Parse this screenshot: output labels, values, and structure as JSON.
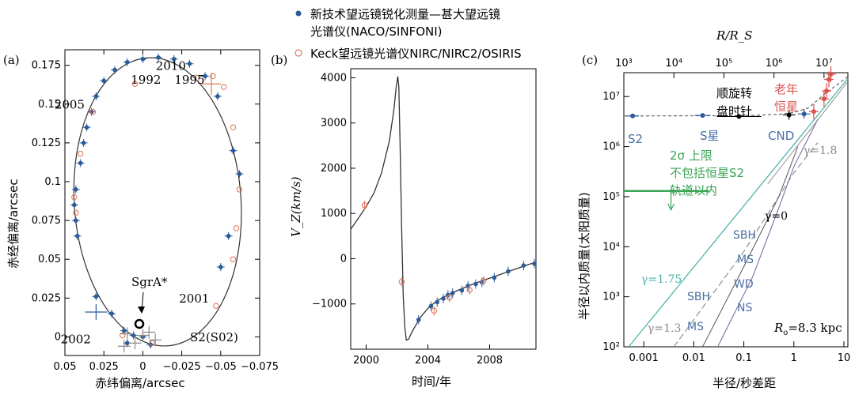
{
  "legend": {
    "items": [
      {
        "marker": "filled-circle",
        "color": "#2b5c99",
        "label_line1": "新技术望远镜锐化测量—甚大望远镜",
        "label_line2": "光谱仪(NACO/SINFONI)"
      },
      {
        "marker": "open-circle",
        "color": "#e07a5f",
        "label_line1": "Keck望远镜光谱仪NIRC/NIRC2/OSIRIS",
        "label_line2": ""
      }
    ]
  },
  "colors": {
    "vlt": "#2b5c99",
    "keck": "#e07a5f",
    "gray": "#8a8a8a",
    "green": "#3aa655",
    "teal": "#4fb3a8",
    "red": "#d9534f",
    "purple": "#7b6fa6",
    "label_blue": "#4a6fa5"
  },
  "chart_data": [
    {
      "panel": "(a)",
      "type": "scatter",
      "xlabel": "赤纬偏离/arcsec",
      "ylabel": "赤经偏离/arcsec",
      "xlim": [
        0.05,
        -0.075
      ],
      "ylim": [
        -0.012,
        0.185
      ],
      "xticks": [
        "0.05",
        "0.025",
        "0",
        "−0.025",
        "−0.05",
        "−0.075"
      ],
      "xtick_values": [
        0.05,
        0.025,
        0,
        -0.025,
        -0.05,
        -0.075
      ],
      "yticks": [
        "0",
        "0.025",
        "0.05",
        "0.075",
        "0.1",
        "0.125",
        "0.15",
        "0.175"
      ],
      "ytick_values": [
        0,
        0.025,
        0.05,
        0.075,
        0.1,
        0.125,
        0.15,
        0.175
      ],
      "orbit_label": "S2(S02)",
      "center_label": "SgrA*",
      "annotations": [
        {
          "text": "2010",
          "x": -0.018,
          "y": 0.172
        },
        {
          "text": "1992",
          "x": -0.002,
          "y": 0.163
        },
        {
          "text": "1995",
          "x": -0.03,
          "y": 0.163
        },
        {
          "text": "2005",
          "x": 0.047,
          "y": 0.147
        },
        {
          "text": "2001",
          "x": -0.033,
          "y": 0.022
        },
        {
          "text": "2002",
          "x": 0.043,
          "y": -0.004
        }
      ],
      "series": [
        {
          "name": "VLT",
          "points": [
            [
              0.043,
              0.095
            ],
            [
              0.044,
              0.085
            ],
            [
              0.043,
              0.075
            ],
            [
              0.042,
              0.065
            ],
            [
              0.04,
              0.112
            ],
            [
              0.038,
              0.125
            ],
            [
              0.036,
              0.135
            ],
            [
              0.033,
              0.145
            ],
            [
              0.03,
              0.155
            ],
            [
              0.025,
              0.165
            ],
            [
              0.018,
              0.172
            ],
            [
              0.01,
              0.177
            ],
            [
              0.0,
              0.179
            ],
            [
              -0.01,
              0.18
            ],
            [
              -0.02,
              0.179
            ],
            [
              -0.03,
              0.176
            ],
            [
              -0.04,
              0.168
            ],
            [
              -0.048,
              0.155
            ],
            [
              -0.058,
              0.12
            ],
            [
              -0.062,
              0.105
            ],
            [
              -0.055,
              0.065
            ],
            [
              -0.05,
              0.045
            ],
            [
              0.03,
              0.026
            ],
            [
              0.02,
              0.015
            ],
            [
              0.012,
              0.004
            ],
            [
              0.006,
              0.001
            ],
            [
              0.0,
              0.0
            ],
            [
              -0.005,
              -0.005
            ],
            [
              0.01,
              -0.004
            ]
          ]
        },
        {
          "name": "Keck",
          "points": [
            [
              0.044,
              0.09
            ],
            [
              0.043,
              0.08
            ],
            [
              0.04,
              0.118
            ],
            [
              0.032,
              0.145
            ],
            [
              0.005,
              0.163
            ],
            [
              -0.035,
              0.167
            ],
            [
              -0.045,
              0.168
            ],
            [
              -0.052,
              0.161
            ],
            [
              -0.058,
              0.135
            ],
            [
              -0.062,
              0.095
            ],
            [
              -0.06,
              0.07
            ],
            [
              -0.058,
              0.05
            ],
            [
              -0.047,
              0.02
            ],
            [
              0.013,
              0.001
            ],
            [
              -0.006,
              -0.004
            ]
          ]
        }
      ]
    },
    {
      "panel": "(b)",
      "type": "line",
      "xlabel": "时间/年",
      "ylabel": "V_Z(km/s)",
      "xlim": [
        1999,
        2011
      ],
      "ylim": [
        -2000,
        4200
      ],
      "xticks": [
        "2000",
        "2004",
        "2008"
      ],
      "xtick_values": [
        2000,
        2004,
        2008
      ],
      "yticks": [
        "−1000",
        "0",
        "1000",
        "2000",
        "3000",
        "4000"
      ],
      "ytick_values": [
        -1000,
        0,
        1000,
        2000,
        3000,
        4000
      ],
      "curve": [
        [
          1999.0,
          650
        ],
        [
          1999.5,
          900
        ],
        [
          2000.0,
          1150
        ],
        [
          2000.5,
          1450
        ],
        [
          2001.0,
          1900
        ],
        [
          2001.5,
          2600
        ],
        [
          2001.8,
          3300
        ],
        [
          2001.95,
          3800
        ],
        [
          2002.05,
          4030
        ],
        [
          2002.12,
          3800
        ],
        [
          2002.2,
          2500
        ],
        [
          2002.3,
          700
        ],
        [
          2002.4,
          -800
        ],
        [
          2002.5,
          -1500
        ],
        [
          2002.6,
          -1800
        ],
        [
          2002.75,
          -1780
        ],
        [
          2003.0,
          -1600
        ],
        [
          2003.5,
          -1300
        ],
        [
          2004.0,
          -1100
        ],
        [
          2004.5,
          -950
        ],
        [
          2005.0,
          -850
        ],
        [
          2005.5,
          -770
        ],
        [
          2006.0,
          -690
        ],
        [
          2006.5,
          -620
        ],
        [
          2007.0,
          -550
        ],
        [
          2007.5,
          -490
        ],
        [
          2008.0,
          -430
        ],
        [
          2008.5,
          -370
        ],
        [
          2009.0,
          -310
        ],
        [
          2009.5,
          -250
        ],
        [
          2010.0,
          -190
        ],
        [
          2010.5,
          -130
        ],
        [
          2011.0,
          -80
        ]
      ],
      "series": [
        {
          "name": "VLT",
          "points": [
            [
              2003.4,
              -1350
            ],
            [
              2004.2,
              -1050
            ],
            [
              2004.6,
              -960
            ],
            [
              2005.0,
              -880
            ],
            [
              2005.3,
              -800
            ],
            [
              2005.6,
              -760
            ],
            [
              2006.2,
              -700
            ],
            [
              2006.6,
              -600
            ],
            [
              2007.1,
              -560
            ],
            [
              2007.5,
              -520
            ],
            [
              2008.3,
              -420
            ],
            [
              2009.2,
              -280
            ],
            [
              2010.2,
              -150
            ],
            [
              2010.9,
              -110
            ]
          ]
        },
        {
          "name": "Keck",
          "points": [
            [
              1999.9,
              1180
            ],
            [
              2002.3,
              -510
            ],
            [
              2004.4,
              -1150
            ],
            [
              2005.4,
              -860
            ],
            [
              2006.7,
              -690
            ],
            [
              2007.6,
              -490
            ]
          ]
        }
      ]
    },
    {
      "panel": "(c)",
      "type": "line",
      "x_scale": "log",
      "y_scale": "log",
      "xlabel": "半径/秒差距",
      "ylabel": "半径以内质量(太阳质量)",
      "top_xlabel": "R/R_S",
      "xlim": [
        0.0004,
        12
      ],
      "ylim": [
        100,
        30000000
      ],
      "xticks": [
        "0.001",
        "0.01",
        "0.1",
        "1",
        "10"
      ],
      "xtick_values": [
        0.001,
        0.01,
        0.1,
        1,
        10
      ],
      "top_xticks": [
        "10³",
        "10⁴",
        "10⁵",
        "10⁶",
        "10⁷"
      ],
      "top_xtick_values": [
        0.0004,
        0.004,
        0.04,
        0.4,
        4
      ],
      "yticks": [
        "10²",
        "10³",
        "10⁴",
        "10⁵",
        "10⁶",
        "10⁷"
      ],
      "ytick_values": [
        100,
        1000,
        10000,
        100000,
        1000000,
        10000000
      ],
      "annotations": {
        "rotation_label_line1": "顺旋转",
        "rotation_label_line2": "盘时针",
        "old_stars_line1": "老年",
        "old_stars_line2": "恒星",
        "s2": "S2",
        "s_stars": "S星",
        "cnd": "CND",
        "limit_line1": "2σ 上限",
        "limit_line2": "不包括恒星S2",
        "limit_line3": "轨道以内",
        "gamma_18": "γ=1.8",
        "gamma_0": "γ=0",
        "gamma_175": "γ=1.75",
        "gamma_13": "γ=1.3",
        "sbh1": "SBH",
        "ms1": "MS",
        "wd": "WD",
        "ns": "NS",
        "sbh2": "SBH",
        "ms2": "MS",
        "ro": "R",
        "ro_sub": "o",
        "ro_value": "=8.3 kpc"
      },
      "series": [
        {
          "name": "S2",
          "points": [
            [
              0.0006,
              4100000
            ]
          ]
        },
        {
          "name": "S-stars",
          "points": [
            [
              0.015,
              4200000
            ]
          ]
        },
        {
          "name": "clockwise disk",
          "points": [
            [
              0.08,
              4000000
            ]
          ]
        },
        {
          "name": "CND",
          "points": [
            [
              0.8,
              4300000
            ],
            [
              1.6,
              4500000
            ]
          ]
        },
        {
          "name": "old stars",
          "points": [
            [
              2.5,
              5000000
            ],
            [
              4.0,
              9000000
            ],
            [
              4.5,
              13000000
            ],
            [
              5.0,
              22000000
            ],
            [
              5.5,
              28000000
            ]
          ]
        },
        {
          "name": "2σ upper limit",
          "points": [
            [
              0.0004,
              130000
            ],
            [
              0.02,
              130000
            ]
          ]
        }
      ]
    }
  ]
}
